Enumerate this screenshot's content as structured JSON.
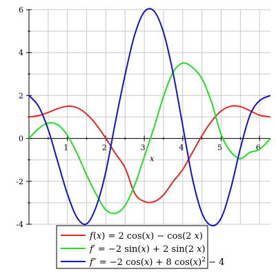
{
  "chart_data": {
    "type": "line",
    "xlabel": "x",
    "ylabel": "",
    "xlim": [
      0,
      6.283
    ],
    "ylim": [
      -4,
      6
    ],
    "grid": true,
    "legend_position": "bottom",
    "x_ticks": [
      1,
      2,
      3,
      4,
      5,
      6
    ],
    "x_tick_labels": [
      "1",
      "2",
      "3",
      "4",
      "5",
      "6"
    ],
    "y_ticks": [
      -4,
      -2,
      0,
      2,
      4,
      6
    ],
    "y_tick_labels": [
      "-4",
      "-2",
      "0",
      "2",
      "4",
      "6"
    ],
    "x": [
      0,
      0.25,
      0.5,
      0.75,
      1.0,
      1.25,
      1.5,
      1.75,
      2.0,
      2.25,
      2.5,
      2.75,
      3.0,
      3.25,
      3.5,
      3.75,
      4.0,
      4.25,
      4.5,
      4.75,
      5.0,
      5.25,
      5.5,
      5.75,
      6.0,
      6.283
    ],
    "series": [
      {
        "name": "f(x) = 2 cos(x) − cos(2 x)",
        "color": "#e32626",
        "values": [
          1.0,
          1.06,
          1.21,
          1.39,
          1.5,
          1.43,
          1.13,
          0.64,
          0.0,
          -0.71,
          -1.37,
          -2.56,
          -2.94,
          -2.95,
          -2.63,
          -2.01,
          -1.45,
          -0.66,
          0.13,
          0.8,
          1.28,
          1.5,
          1.48,
          1.29,
          1.08,
          1.0
        ],
        "label_parts": [
          "f",
          "(",
          "x",
          ") = 2 cos(",
          "x",
          ") − cos(2 ",
          "x",
          ")"
        ]
      },
      {
        "name": "f′ = −2 sin(x) + 2 sin(2 x)",
        "color": "#22dd22",
        "values": [
          0.0,
          0.46,
          0.72,
          0.63,
          0.14,
          -0.7,
          -1.71,
          -2.61,
          -3.33,
          -3.49,
          -3.12,
          -2.17,
          -0.85,
          0.5,
          1.96,
          3.09,
          3.51,
          3.31,
          2.78,
          1.68,
          0.17,
          -0.63,
          -0.94,
          -0.65,
          -0.51,
          0.0
        ],
        "label_parts": [
          "f",
          "′ = −2 sin(",
          "x",
          ") + 2 sin(2 ",
          "x",
          ")"
        ]
      },
      {
        "name": "f″ = −2 cos(x) + 8 cos(x)² − 4",
        "color": "#1111cc",
        "values": [
          2.0,
          1.49,
          0.41,
          -1.1,
          -2.59,
          -3.69,
          -3.98,
          -3.17,
          -1.55,
          0.78,
          2.96,
          4.83,
          5.9,
          5.94,
          4.94,
          3.04,
          0.59,
          -1.85,
          -3.48,
          -4.06,
          -3.71,
          -2.33,
          -0.46,
          1.09,
          1.76,
          2.0
        ],
        "label_parts": [
          "f",
          "″ = −2 cos(",
          "x",
          ") + 8 cos(",
          "x",
          ")",
          "2",
          " − 4"
        ]
      }
    ]
  }
}
